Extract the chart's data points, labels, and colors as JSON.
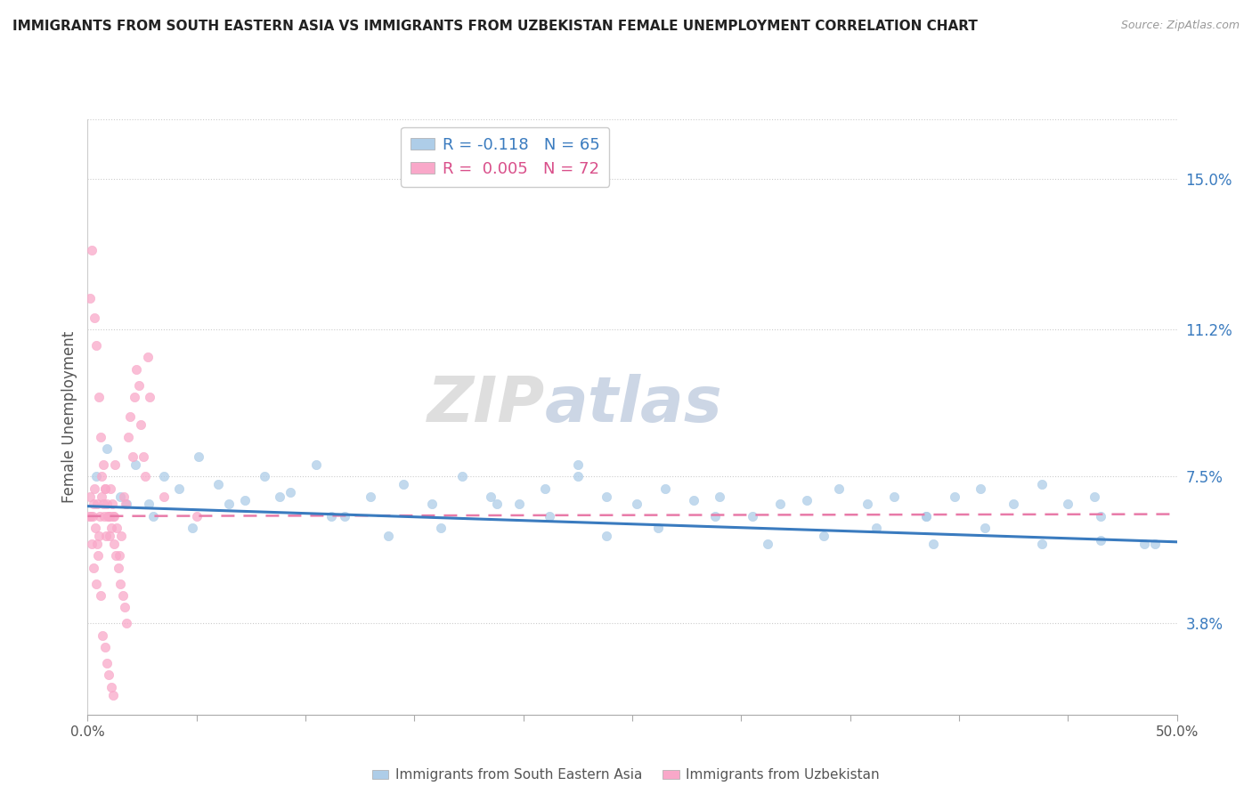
{
  "title": "IMMIGRANTS FROM SOUTH EASTERN ASIA VS IMMIGRANTS FROM UZBEKISTAN FEMALE UNEMPLOYMENT CORRELATION CHART",
  "source": "Source: ZipAtlas.com",
  "ylabel": "Female Unemployment",
  "ylabel_right_ticks": [
    3.8,
    7.5,
    11.2,
    15.0
  ],
  "ylabel_right_labels": [
    "3.8%",
    "7.5%",
    "11.2%",
    "15.0%"
  ],
  "xmin": 0.0,
  "xmax": 50.0,
  "ymin": 1.5,
  "ymax": 16.5,
  "legend_1_label": "R = -0.118   N = 65",
  "legend_2_label": "R =  0.005   N = 72",
  "series1_color": "#aecde8",
  "series2_color": "#f9a8c9",
  "trendline1_color": "#3a7bbf",
  "trendline2_color": "#e87aa8",
  "watermark_zip": "ZIP",
  "watermark_atlas": "atlas",
  "series1_x": [
    0.4,
    0.9,
    1.5,
    2.2,
    2.8,
    3.5,
    4.2,
    5.1,
    6.0,
    7.2,
    8.1,
    9.3,
    10.5,
    11.8,
    13.0,
    14.5,
    15.8,
    17.2,
    18.5,
    19.8,
    21.0,
    22.5,
    23.8,
    25.2,
    26.5,
    27.8,
    29.0,
    30.5,
    31.8,
    33.0,
    34.5,
    35.8,
    37.0,
    38.5,
    39.8,
    41.0,
    42.5,
    43.8,
    45.0,
    46.5,
    1.8,
    3.0,
    4.8,
    6.5,
    8.8,
    11.2,
    13.8,
    16.2,
    18.8,
    21.2,
    23.8,
    26.2,
    28.8,
    31.2,
    33.8,
    36.2,
    38.8,
    41.2,
    43.8,
    46.5,
    48.5,
    22.5,
    38.5,
    46.2,
    49.0
  ],
  "series1_y": [
    7.5,
    8.2,
    7.0,
    7.8,
    6.8,
    7.5,
    7.2,
    8.0,
    7.3,
    6.9,
    7.5,
    7.1,
    7.8,
    6.5,
    7.0,
    7.3,
    6.8,
    7.5,
    7.0,
    6.8,
    7.2,
    7.5,
    7.0,
    6.8,
    7.2,
    6.9,
    7.0,
    6.5,
    6.8,
    6.9,
    7.2,
    6.8,
    7.0,
    6.5,
    7.0,
    7.2,
    6.8,
    7.3,
    6.8,
    6.5,
    6.8,
    6.5,
    6.2,
    6.8,
    7.0,
    6.5,
    6.0,
    6.2,
    6.8,
    6.5,
    6.0,
    6.2,
    6.5,
    5.8,
    6.0,
    6.2,
    5.8,
    6.2,
    5.8,
    5.9,
    5.8,
    7.8,
    6.5,
    7.0,
    5.8
  ],
  "series2_x": [
    0.15,
    0.25,
    0.35,
    0.45,
    0.55,
    0.65,
    0.75,
    0.85,
    0.95,
    1.05,
    1.15,
    1.25,
    1.35,
    1.45,
    1.55,
    1.65,
    1.75,
    1.85,
    1.95,
    2.05,
    2.15,
    2.25,
    2.35,
    2.45,
    2.55,
    2.65,
    2.75,
    2.85,
    0.1,
    0.2,
    0.3,
    0.4,
    0.5,
    0.6,
    0.7,
    0.8,
    0.9,
    1.0,
    1.1,
    1.2,
    1.3,
    1.4,
    1.5,
    1.6,
    1.7,
    1.8,
    0.05,
    0.12,
    0.22,
    0.32,
    0.42,
    0.52,
    0.62,
    0.72,
    0.82,
    0.92,
    1.02,
    1.12,
    1.22,
    3.5,
    5.0,
    0.18,
    0.28,
    0.38,
    0.48,
    0.58,
    0.68,
    0.78,
    0.88,
    0.98,
    1.08,
    1.18
  ],
  "series2_y": [
    6.5,
    6.8,
    6.2,
    5.8,
    6.5,
    7.0,
    6.5,
    6.0,
    6.5,
    7.2,
    6.5,
    7.8,
    6.2,
    5.5,
    6.0,
    7.0,
    6.8,
    8.5,
    9.0,
    8.0,
    9.5,
    10.2,
    9.8,
    8.8,
    8.0,
    7.5,
    10.5,
    9.5,
    12.0,
    13.2,
    11.5,
    10.8,
    9.5,
    8.5,
    7.8,
    7.2,
    6.8,
    6.5,
    6.2,
    5.8,
    5.5,
    5.2,
    4.8,
    4.5,
    4.2,
    3.8,
    6.5,
    7.0,
    6.5,
    7.2,
    6.8,
    6.0,
    7.5,
    6.8,
    7.2,
    6.5,
    6.0,
    6.8,
    6.5,
    7.0,
    6.5,
    5.8,
    5.2,
    4.8,
    5.5,
    4.5,
    3.5,
    3.2,
    2.8,
    2.5,
    2.2,
    2.0
  ]
}
